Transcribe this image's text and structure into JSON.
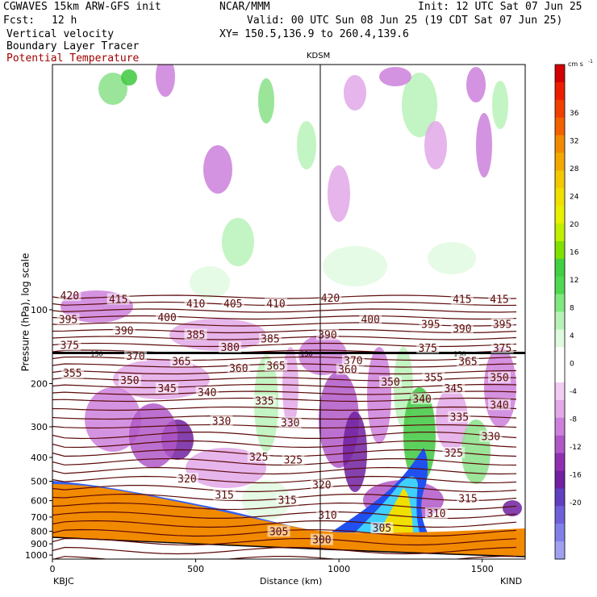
{
  "header": {
    "model": "CGWAVES 15km ARW-GFS init",
    "center": "NCAR/MMM",
    "init": "Init: 12 UTC Sat 07 Jun 25",
    "fcst_label": "Fcst:",
    "fcst_value": "12 h",
    "valid": "Valid: 00 UTC Sun 08 Jun 25 (19 CDT Sat 07 Jun 25)",
    "field1": "Vertical velocity",
    "field2": "Boundary Layer Tracer",
    "field3": "Potential Temperature",
    "xy": "XY= 150.5,136.9 to 260.4,139.6",
    "station_mid": "KDSM"
  },
  "colors": {
    "theta": "#5c0a0a",
    "tropo": "#000000",
    "terrain": "#f28a00",
    "title_red": "#a00000"
  },
  "chart_data": {
    "type": "heatmap",
    "xlabel": "Distance (km)",
    "ylabel": "Pressure (hPa), log scale",
    "xlim": [
      0,
      1650
    ],
    "x_ticks": [
      0,
      500,
      1000,
      1500
    ],
    "y_ticks": [
      100,
      200,
      300,
      400,
      500,
      600,
      700,
      800,
      900,
      1000
    ],
    "y_scale": "log",
    "x_end_labels": {
      "left": "KBJC",
      "right": "KIND"
    },
    "colorbar": {
      "unit": "cm s",
      "unit_exp": "-1",
      "ticks": [
        36,
        32,
        28,
        24,
        20,
        16,
        12,
        8,
        4,
        0,
        -4,
        -8,
        -12,
        -16,
        -20
      ],
      "colors": [
        "#d20000",
        "#ec1e00",
        "#f04000",
        "#f26200",
        "#f28a00",
        "#f2a800",
        "#f2c800",
        "#f0e000",
        "#e8f000",
        "#c0f000",
        "#80e000",
        "#40d040",
        "#50d850",
        "#80e880",
        "#b8f2b8",
        "#e0fae0",
        "#ffffff",
        "#ffffff",
        "#f2ccf2",
        "#e2a8e8",
        "#cc80dc",
        "#b058c8",
        "#9030b0",
        "#7020a0",
        "#6040c0",
        "#7060d8",
        "#8080e8",
        "#a0a0f0"
      ]
    },
    "theta_labels": [
      {
        "label": "420",
        "x": 60,
        "p": 88
      },
      {
        "label": "415",
        "x": 230,
        "p": 91
      },
      {
        "label": "410",
        "x": 500,
        "p": 95
      },
      {
        "label": "405",
        "x": 630,
        "p": 95
      },
      {
        "label": "410",
        "x": 780,
        "p": 95
      },
      {
        "label": "420",
        "x": 970,
        "p": 90
      },
      {
        "label": "415",
        "x": 1430,
        "p": 91
      },
      {
        "label": "415",
        "x": 1560,
        "p": 91
      },
      {
        "label": "395",
        "x": 55,
        "p": 110
      },
      {
        "label": "400",
        "x": 400,
        "p": 108
      },
      {
        "label": "390",
        "x": 250,
        "p": 122
      },
      {
        "label": "400",
        "x": 1110,
        "p": 110
      },
      {
        "label": "395",
        "x": 1320,
        "p": 115
      },
      {
        "label": "390",
        "x": 1430,
        "p": 120
      },
      {
        "label": "395",
        "x": 1570,
        "p": 115
      },
      {
        "label": "385",
        "x": 500,
        "p": 127
      },
      {
        "label": "385",
        "x": 760,
        "p": 132
      },
      {
        "label": "390",
        "x": 960,
        "p": 127
      },
      {
        "label": "375",
        "x": 60,
        "p": 140
      },
      {
        "label": "380",
        "x": 620,
        "p": 143
      },
      {
        "label": "375",
        "x": 1310,
        "p": 144
      },
      {
        "label": "375",
        "x": 1570,
        "p": 144
      },
      {
        "label": "370",
        "x": 290,
        "p": 155
      },
      {
        "label": "365",
        "x": 450,
        "p": 163
      },
      {
        "label": "370",
        "x": 1050,
        "p": 162
      },
      {
        "label": "365",
        "x": 1450,
        "p": 163
      },
      {
        "label": "360",
        "x": 650,
        "p": 174
      },
      {
        "label": "365",
        "x": 780,
        "p": 170
      },
      {
        "label": "360",
        "x": 1030,
        "p": 176
      },
      {
        "label": "355",
        "x": 70,
        "p": 182
      },
      {
        "label": "355",
        "x": 1330,
        "p": 190
      },
      {
        "label": "350",
        "x": 270,
        "p": 195
      },
      {
        "label": "350",
        "x": 1180,
        "p": 198
      },
      {
        "label": "350",
        "x": 1560,
        "p": 190
      },
      {
        "label": "345",
        "x": 400,
        "p": 210
      },
      {
        "label": "345",
        "x": 1400,
        "p": 210
      },
      {
        "label": "340",
        "x": 540,
        "p": 218
      },
      {
        "label": "340",
        "x": 1290,
        "p": 232
      },
      {
        "label": "340",
        "x": 1560,
        "p": 245
      },
      {
        "label": "335",
        "x": 740,
        "p": 236
      },
      {
        "label": "335",
        "x": 1420,
        "p": 275
      },
      {
        "label": "330",
        "x": 590,
        "p": 285
      },
      {
        "label": "330",
        "x": 830,
        "p": 290
      },
      {
        "label": "330",
        "x": 1530,
        "p": 330
      },
      {
        "label": "325",
        "x": 720,
        "p": 400
      },
      {
        "label": "325",
        "x": 840,
        "p": 410
      },
      {
        "label": "325",
        "x": 1400,
        "p": 385
      },
      {
        "label": "320",
        "x": 470,
        "p": 490
      },
      {
        "label": "320",
        "x": 940,
        "p": 520
      },
      {
        "label": "315",
        "x": 600,
        "p": 570
      },
      {
        "label": "315",
        "x": 820,
        "p": 600
      },
      {
        "label": "315",
        "x": 1450,
        "p": 590
      },
      {
        "label": "310",
        "x": 960,
        "p": 690
      },
      {
        "label": "310",
        "x": 1340,
        "p": 680
      },
      {
        "label": "305",
        "x": 790,
        "p": 805
      },
      {
        "label": "305",
        "x": 1150,
        "p": 780
      },
      {
        "label": "300",
        "x": 940,
        "p": 870
      }
    ],
    "tropopause_label": "150",
    "tropopause_p": 150
  }
}
